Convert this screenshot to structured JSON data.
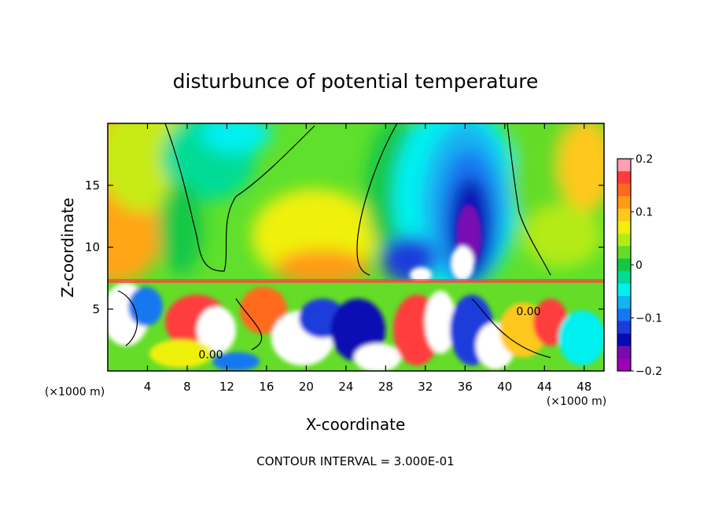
{
  "chart_data": {
    "type": "heatmap",
    "title": "disturbunce of potential temperature",
    "xlabel": "X-coordinate",
    "ylabel": "Z-coordinate",
    "x_unit": "(×1000 m)",
    "z_unit": "(×1000 m)",
    "xlim": [
      0,
      50
    ],
    "ylim": [
      0,
      20
    ],
    "x_ticks": [
      4,
      8,
      12,
      16,
      20,
      24,
      28,
      32,
      36,
      40,
      44,
      48
    ],
    "y_ticks": [
      5,
      10,
      15
    ],
    "colorbar": {
      "range": [
        -0.2,
        0.2
      ],
      "ticks": [
        "0.2",
        "0.1",
        "0",
        "−0.1",
        "−0.2"
      ],
      "colors": [
        "#ff9fb0",
        "#ff3c3c",
        "#ff6a1e",
        "#ff9a14",
        "#ffc81e",
        "#f0f00a",
        "#b4eb14",
        "#64dc28",
        "#14c846",
        "#00dc96",
        "#00f0f0",
        "#14b4f0",
        "#1478f0",
        "#1e3cdc",
        "#0a0ab4",
        "#780ab4",
        "#a000b4"
      ]
    },
    "contour_labels": [
      "0.00",
      "0.00"
    ],
    "footnote": "CONTOUR INTERVAL = 3.000E-01"
  }
}
